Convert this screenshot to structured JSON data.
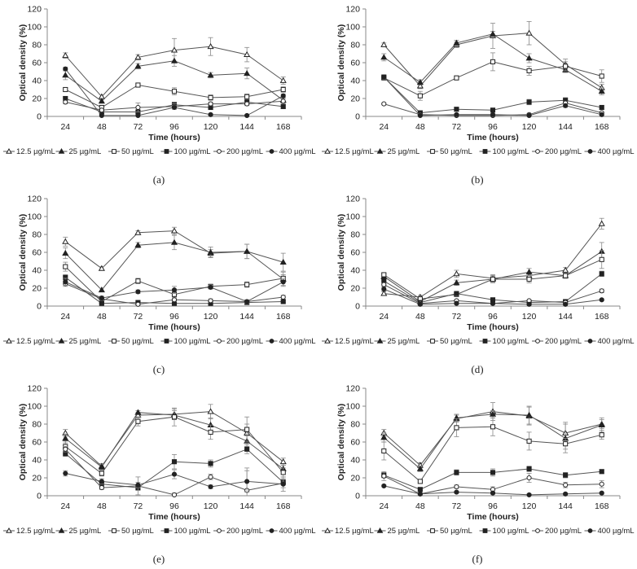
{
  "figure": {
    "series_styles": [
      {
        "name": "12.5 µg/mL",
        "marker": "triangle",
        "fill": "open"
      },
      {
        "name": "25 µg/mL",
        "marker": "triangle",
        "fill": "filled"
      },
      {
        "name": "50 µg/mL",
        "marker": "square",
        "fill": "open"
      },
      {
        "name": "100 µg/mL",
        "marker": "square",
        "fill": "filled"
      },
      {
        "name": "200 µg/mL",
        "marker": "circle",
        "fill": "open"
      },
      {
        "name": "400 µg/mL",
        "marker": "circle",
        "fill": "filled"
      }
    ],
    "colors": {
      "line": "#555555",
      "marker": "#222222",
      "axis": "#888888"
    }
  },
  "chart_data": [
    {
      "type": "line",
      "panel_label": "(a)",
      "xlabel": "Time (hours)",
      "ylabel": "Optical density (%)",
      "categories": [
        "24",
        "48",
        "72",
        "96",
        "120",
        "144",
        "168"
      ],
      "ylim": [
        0,
        120
      ],
      "yticks": [
        0,
        20,
        40,
        60,
        80,
        100,
        120
      ],
      "series": [
        {
          "name": "12.5 µg/mL",
          "values": [
            68,
            22,
            66,
            74,
            78,
            69,
            40
          ],
          "errors": [
            3,
            2,
            3,
            13,
            10,
            8,
            4
          ]
        },
        {
          "name": "25 µg/mL",
          "values": [
            46,
            17,
            56,
            62,
            46,
            48,
            18
          ],
          "errors": [
            5,
            2,
            3,
            6,
            3,
            6,
            3
          ]
        },
        {
          "name": "50 µg/mL",
          "values": [
            30,
            10,
            35,
            28,
            21,
            22,
            30
          ],
          "errors": [
            2,
            2,
            2,
            4,
            3,
            3,
            3
          ]
        },
        {
          "name": "100 µg/mL",
          "values": [
            20,
            5,
            5,
            13,
            10,
            16,
            11
          ],
          "errors": [
            2,
            2,
            2,
            3,
            2,
            3,
            2
          ]
        },
        {
          "name": "200 µg/mL",
          "values": [
            16,
            7,
            10,
            11,
            14,
            14,
            17
          ],
          "errors": [
            2,
            2,
            5,
            3,
            2,
            2,
            3
          ]
        },
        {
          "name": "400 µg/mL",
          "values": [
            53,
            1,
            1,
            10,
            2,
            1,
            23
          ],
          "errors": [
            2,
            1,
            1,
            2,
            1,
            1,
            2
          ]
        }
      ]
    },
    {
      "type": "line",
      "panel_label": "(b)",
      "xlabel": "Time (hours)",
      "ylabel": "Optical density (%)",
      "categories": [
        "24",
        "48",
        "72",
        "96",
        "120",
        "144",
        "168"
      ],
      "ylim": [
        0,
        120
      ],
      "yticks": [
        0,
        20,
        40,
        60,
        80,
        100,
        120
      ],
      "series": [
        {
          "name": "12.5 µg/mL",
          "values": [
            80,
            34,
            80,
            90,
            93,
            58,
            32
          ],
          "errors": [
            2,
            3,
            3,
            14,
            13,
            6,
            4
          ]
        },
        {
          "name": "25 µg/mL",
          "values": [
            66,
            38,
            82,
            92,
            65,
            52,
            28
          ],
          "errors": [
            4,
            3,
            3,
            3,
            5,
            3,
            4
          ]
        },
        {
          "name": "50 µg/mL",
          "values": [
            43,
            23,
            43,
            61,
            51,
            56,
            45
          ],
          "errors": [
            2,
            5,
            2,
            10,
            5,
            5,
            7
          ]
        },
        {
          "name": "100 µg/mL",
          "values": [
            44,
            4,
            8,
            7,
            16,
            18,
            10
          ],
          "errors": [
            2,
            2,
            2,
            2,
            3,
            3,
            2
          ]
        },
        {
          "name": "200 µg/mL",
          "values": [
            14,
            2,
            1,
            1,
            2,
            15,
            4
          ],
          "errors": [
            1,
            1,
            1,
            1,
            1,
            2,
            1
          ]
        },
        {
          "name": "400 µg/mL",
          "values": [
            44,
            1,
            2,
            2,
            1,
            12,
            2
          ],
          "errors": [
            1,
            1,
            1,
            1,
            1,
            2,
            1
          ]
        }
      ]
    },
    {
      "type": "line",
      "panel_label": "(c)",
      "xlabel": "Time (hours)",
      "ylabel": "Optical density (%)",
      "categories": [
        "24",
        "48",
        "72",
        "96",
        "120",
        "144",
        "168"
      ],
      "ylim": [
        0,
        120
      ],
      "yticks": [
        0,
        20,
        40,
        60,
        80,
        100,
        120
      ],
      "series": [
        {
          "name": "12.5 µg/mL",
          "values": [
            72,
            42,
            82,
            84,
            59,
            61,
            30
          ],
          "errors": [
            5,
            2,
            2,
            4,
            4,
            8,
            8
          ]
        },
        {
          "name": "25 µg/mL",
          "values": [
            59,
            18,
            68,
            71,
            60,
            61,
            49
          ],
          "errors": [
            6,
            2,
            3,
            8,
            6,
            8,
            10
          ]
        },
        {
          "name": "50 µg/mL",
          "values": [
            44,
            5,
            28,
            13,
            22,
            24,
            31
          ],
          "errors": [
            5,
            2,
            3,
            3,
            2,
            3,
            4
          ]
        },
        {
          "name": "100 µg/mL",
          "values": [
            32,
            3,
            4,
            3,
            3,
            4,
            5
          ],
          "errors": [
            3,
            1,
            1,
            1,
            1,
            1,
            1
          ]
        },
        {
          "name": "200 µg/mL",
          "values": [
            25,
            8,
            2,
            7,
            6,
            5,
            10
          ],
          "errors": [
            3,
            2,
            1,
            2,
            2,
            1,
            2
          ]
        },
        {
          "name": "400 µg/mL",
          "values": [
            27,
            9,
            16,
            18,
            21,
            5,
            27
          ],
          "errors": [
            4,
            2,
            2,
            4,
            2,
            2,
            4
          ]
        }
      ]
    },
    {
      "type": "line",
      "panel_label": "(d)",
      "xlabel": "Time (hours)",
      "ylabel": "Optical density (%)",
      "categories": [
        "24",
        "48",
        "72",
        "96",
        "120",
        "144",
        "168"
      ],
      "ylim": [
        0,
        120
      ],
      "yticks": [
        0,
        20,
        40,
        60,
        80,
        100,
        120
      ],
      "series": [
        {
          "name": "12.5 µg/mL",
          "values": [
            14,
            10,
            36,
            31,
            34,
            40,
            92
          ],
          "errors": [
            2,
            2,
            4,
            4,
            3,
            3,
            6
          ]
        },
        {
          "name": "25 µg/mL",
          "values": [
            33,
            5,
            26,
            30,
            38,
            34,
            61
          ],
          "errors": [
            3,
            2,
            3,
            4,
            4,
            3,
            10
          ]
        },
        {
          "name": "50 µg/mL",
          "values": [
            35,
            8,
            13,
            30,
            30,
            34,
            52
          ],
          "errors": [
            2,
            2,
            2,
            3,
            4,
            3,
            10
          ]
        },
        {
          "name": "100 µg/mL",
          "values": [
            28,
            4,
            14,
            7,
            4,
            5,
            36
          ],
          "errors": [
            2,
            1,
            2,
            2,
            1,
            1,
            3
          ]
        },
        {
          "name": "200 µg/mL",
          "values": [
            24,
            3,
            6,
            3,
            6,
            4,
            17
          ],
          "errors": [
            2,
            1,
            1,
            1,
            1,
            1,
            2
          ]
        },
        {
          "name": "400 µg/mL",
          "values": [
            19,
            2,
            3,
            3,
            2,
            2,
            7
          ],
          "errors": [
            2,
            1,
            1,
            1,
            1,
            1,
            1
          ]
        }
      ]
    },
    {
      "type": "line",
      "panel_label": "(e)",
      "xlabel": "Time (hours)",
      "ylabel": "Optical density (%)",
      "categories": [
        "24",
        "48",
        "72",
        "96",
        "120",
        "144",
        "168"
      ],
      "ylim": [
        0,
        120
      ],
      "yticks": [
        0,
        20,
        40,
        60,
        80,
        100,
        120
      ],
      "series": [
        {
          "name": "12.5 µg/mL",
          "values": [
            70,
            33,
            90,
            91,
            94,
            70,
            38
          ],
          "errors": [
            4,
            3,
            3,
            6,
            8,
            10,
            4
          ]
        },
        {
          "name": "25 µg/mL",
          "values": [
            64,
            32,
            93,
            90,
            79,
            61,
            30
          ],
          "errors": [
            5,
            3,
            2,
            5,
            8,
            6,
            4
          ]
        },
        {
          "name": "50 µg/mL",
          "values": [
            55,
            25,
            83,
            88,
            71,
            74,
            26
          ],
          "errors": [
            6,
            3,
            5,
            10,
            8,
            14,
            5
          ]
        },
        {
          "name": "100 µg/mL",
          "values": [
            47,
            13,
            9,
            38,
            36,
            52,
            15
          ],
          "errors": [
            3,
            2,
            3,
            8,
            4,
            5,
            3
          ]
        },
        {
          "name": "200 µg/mL",
          "values": [
            52,
            9,
            11,
            1,
            21,
            6,
            14
          ],
          "errors": [
            3,
            2,
            10,
            2,
            3,
            25,
            5
          ]
        },
        {
          "name": "400 µg/mL",
          "values": [
            25,
            16,
            12,
            24,
            10,
            16,
            13
          ],
          "errors": [
            3,
            3,
            3,
            5,
            2,
            12,
            8
          ]
        }
      ]
    },
    {
      "type": "line",
      "panel_label": "(f)",
      "xlabel": "Time (hours)",
      "ylabel": "Optical density (%)",
      "categories": [
        "24",
        "48",
        "72",
        "96",
        "120",
        "144",
        "168"
      ],
      "ylim": [
        0,
        120
      ],
      "yticks": [
        0,
        20,
        40,
        60,
        80,
        100,
        120
      ],
      "series": [
        {
          "name": "12.5 µg/mL",
          "values": [
            70,
            34,
            86,
            94,
            89,
            70,
            80
          ],
          "errors": [
            4,
            3,
            4,
            10,
            10,
            12,
            5
          ]
        },
        {
          "name": "25 µg/mL",
          "values": [
            65,
            30,
            87,
            91,
            90,
            64,
            79
          ],
          "errors": [
            5,
            3,
            4,
            4,
            10,
            16,
            8
          ]
        },
        {
          "name": "50 µg/mL",
          "values": [
            50,
            16,
            76,
            77,
            61,
            58,
            68
          ],
          "errors": [
            10,
            2,
            10,
            10,
            10,
            6,
            5
          ]
        },
        {
          "name": "100 µg/mL",
          "values": [
            23,
            7,
            26,
            26,
            30,
            23,
            27
          ],
          "errors": [
            3,
            2,
            3,
            4,
            3,
            3,
            2
          ]
        },
        {
          "name": "200 µg/mL",
          "values": [
            22,
            2,
            10,
            7,
            20,
            12,
            13
          ],
          "errors": [
            5,
            1,
            2,
            3,
            5,
            3,
            4
          ]
        },
        {
          "name": "400 µg/mL",
          "values": [
            11,
            2,
            4,
            3,
            1,
            2,
            3
          ],
          "errors": [
            1,
            1,
            1,
            1,
            1,
            1,
            1
          ]
        }
      ]
    }
  ]
}
